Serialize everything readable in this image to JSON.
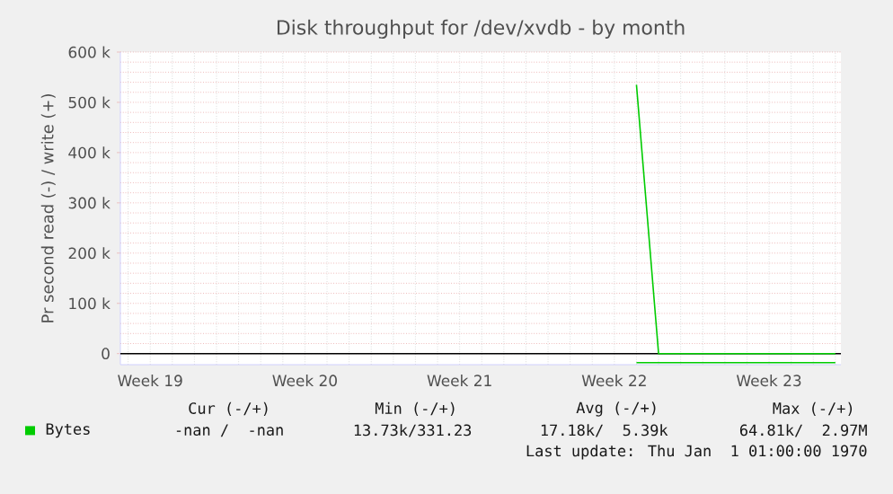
{
  "chart_data": {
    "type": "line",
    "title": "Disk throughput for /dev/xvdb - by month",
    "ylabel": "Pr second read (-) / write (+)",
    "categories": [
      null,
      "Week 19",
      null,
      null,
      null,
      null,
      null,
      null,
      "Week 20",
      null,
      null,
      null,
      null,
      null,
      null,
      "Week 21",
      null,
      null,
      null,
      null,
      null,
      null,
      "Week 22",
      null,
      null,
      null,
      null,
      null,
      null,
      "Week 23",
      null,
      null,
      null
    ],
    "ylim": [
      -22000,
      600000
    ],
    "yticks": [
      {
        "value": 0,
        "label": "0"
      },
      {
        "value": 100000,
        "label": "100 k"
      },
      {
        "value": 200000,
        "label": "200 k"
      },
      {
        "value": 300000,
        "label": "300 k"
      },
      {
        "value": 400000,
        "label": "400 k"
      },
      {
        "value": 500000,
        "label": "500 k"
      },
      {
        "value": 600000,
        "label": "600 k"
      }
    ],
    "grid": true,
    "legend": "bottom",
    "series": [
      {
        "name": "Bytes",
        "color": "#00cc00",
        "values": [
          null,
          null,
          null,
          null,
          null,
          null,
          null,
          null,
          null,
          null,
          null,
          null,
          null,
          null,
          null,
          null,
          null,
          null,
          null,
          null,
          null,
          null,
          null,
          -18000,
          -18000,
          -18000,
          -18000,
          -18000,
          -18000,
          -18000,
          -18000,
          -18000,
          -18000
        ]
      },
      {
        "color": "#00cc00",
        "values": [
          null,
          null,
          null,
          null,
          null,
          null,
          null,
          null,
          null,
          null,
          null,
          null,
          null,
          null,
          null,
          null,
          null,
          null,
          null,
          null,
          null,
          null,
          null,
          535000,
          0,
          0,
          0,
          0,
          0,
          0,
          0,
          0,
          0
        ]
      }
    ],
    "ref_lines": [
      {
        "axis": "y",
        "value": 0,
        "color": "#000000"
      }
    ],
    "annotations": [
      "Cur (-/+)",
      "Min (-/+)",
      "Avg (-/+)",
      "Max (-/+)",
      "-nan /  -nan",
      "13.73k/331.23",
      "17.18k/  5.39k",
      "64.81k/  2.97M",
      "Last update: Thu Jan  1 01:00:00 1970"
    ]
  }
}
